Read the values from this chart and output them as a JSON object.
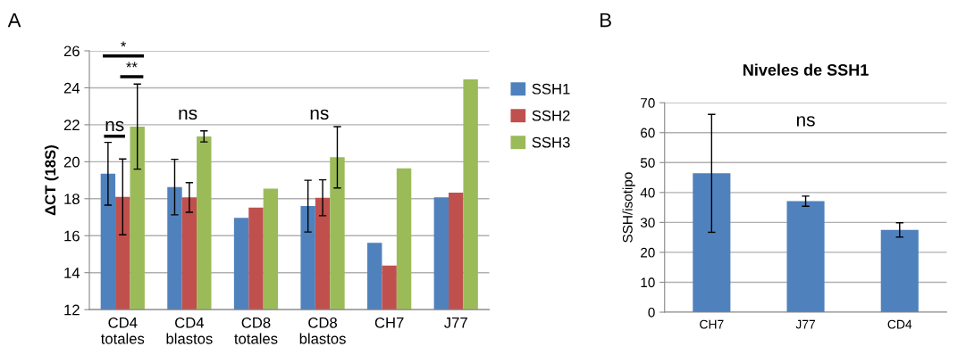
{
  "chart_data": [
    {
      "type": "bar",
      "ylabel": "ΔCT (18S)",
      "categories": [
        "CD4\ntotales",
        "CD4\nblastos",
        "CD8\ntotales",
        "CD8\nblastos",
        "CH7",
        "J77"
      ],
      "series": [
        {
          "name": "SSH1",
          "color": "#4f81bd",
          "values": [
            19.35,
            18.63,
            16.97,
            17.6,
            15.62,
            18.08
          ],
          "errors": [
            1.7,
            1.5,
            null,
            1.4,
            null,
            null
          ]
        },
        {
          "name": "SSH2",
          "color": "#c0504d",
          "values": [
            18.1,
            18.07,
            17.52,
            18.05,
            14.38,
            18.33
          ],
          "errors": [
            2.05,
            0.8,
            null,
            0.97,
            null,
            null
          ]
        },
        {
          "name": "SSH3",
          "color": "#9bbb59",
          "values": [
            21.9,
            21.37,
            18.55,
            20.24,
            19.64,
            24.46
          ],
          "errors": [
            2.3,
            0.3,
            null,
            1.66,
            null,
            null
          ]
        }
      ],
      "ylim": [
        12,
        26
      ],
      "yticks": [
        12,
        14,
        16,
        18,
        20,
        22,
        24,
        26
      ],
      "grid": "y",
      "legend": "right",
      "annotations": [
        "A",
        "ns",
        "*",
        "**",
        "ns",
        "ns"
      ]
    },
    {
      "type": "bar",
      "title": "Niveles de SSH1",
      "ylabel": "SSH/isotipo",
      "categories": [
        "CH7",
        "J77",
        "CD4"
      ],
      "series": [
        {
          "color": "#4f81bd",
          "values": [
            46.4,
            37.1,
            27.5
          ],
          "errors": [
            19.7,
            1.7,
            2.4
          ]
        }
      ],
      "ylim": [
        0,
        70
      ],
      "yticks": [
        0,
        10,
        20,
        30,
        40,
        50,
        60,
        70
      ],
      "grid": "y",
      "annotations": [
        "B",
        "ns"
      ]
    }
  ]
}
